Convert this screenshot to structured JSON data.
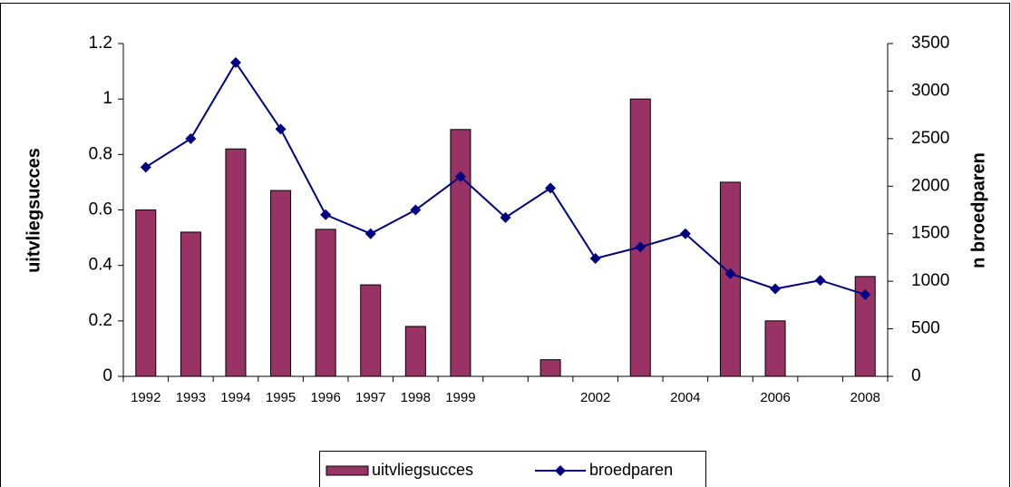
{
  "chart_data": {
    "type": "bar-line",
    "categories": [
      "1992",
      "1993",
      "1994",
      "1995",
      "1996",
      "1997",
      "1998",
      "1999",
      null,
      null,
      "2002",
      null,
      "2004",
      null,
      "2006",
      null,
      "2008"
    ],
    "series": [
      {
        "name": "uitvliegsucces",
        "type": "bar",
        "color": "#993366",
        "axis": "y",
        "values": [
          0.6,
          0.52,
          0.82,
          0.67,
          0.53,
          0.33,
          0.18,
          0.89,
          null,
          0.06,
          null,
          1.0,
          null,
          0.7,
          0.2,
          null,
          0.36
        ]
      },
      {
        "name": "broedparen",
        "type": "line",
        "color": "#000080",
        "axis": "y2",
        "values": [
          2200,
          2500,
          3300,
          2600,
          1700,
          1500,
          1750,
          2100,
          1670,
          1980,
          1240,
          1360,
          1500,
          1080,
          920,
          1010,
          860
        ]
      }
    ],
    "ylabel": "uitvliegsucces",
    "y2label": "n broedparen",
    "ylim": [
      0,
      1.2
    ],
    "yticks": [
      0,
      0.2,
      0.4,
      0.6,
      0.8,
      1,
      1.2
    ],
    "y2lim": [
      0,
      3500
    ],
    "y2ticks": [
      0,
      500,
      1000,
      1500,
      2000,
      2500,
      3000,
      3500
    ],
    "grid": false,
    "legend": "bottom"
  }
}
